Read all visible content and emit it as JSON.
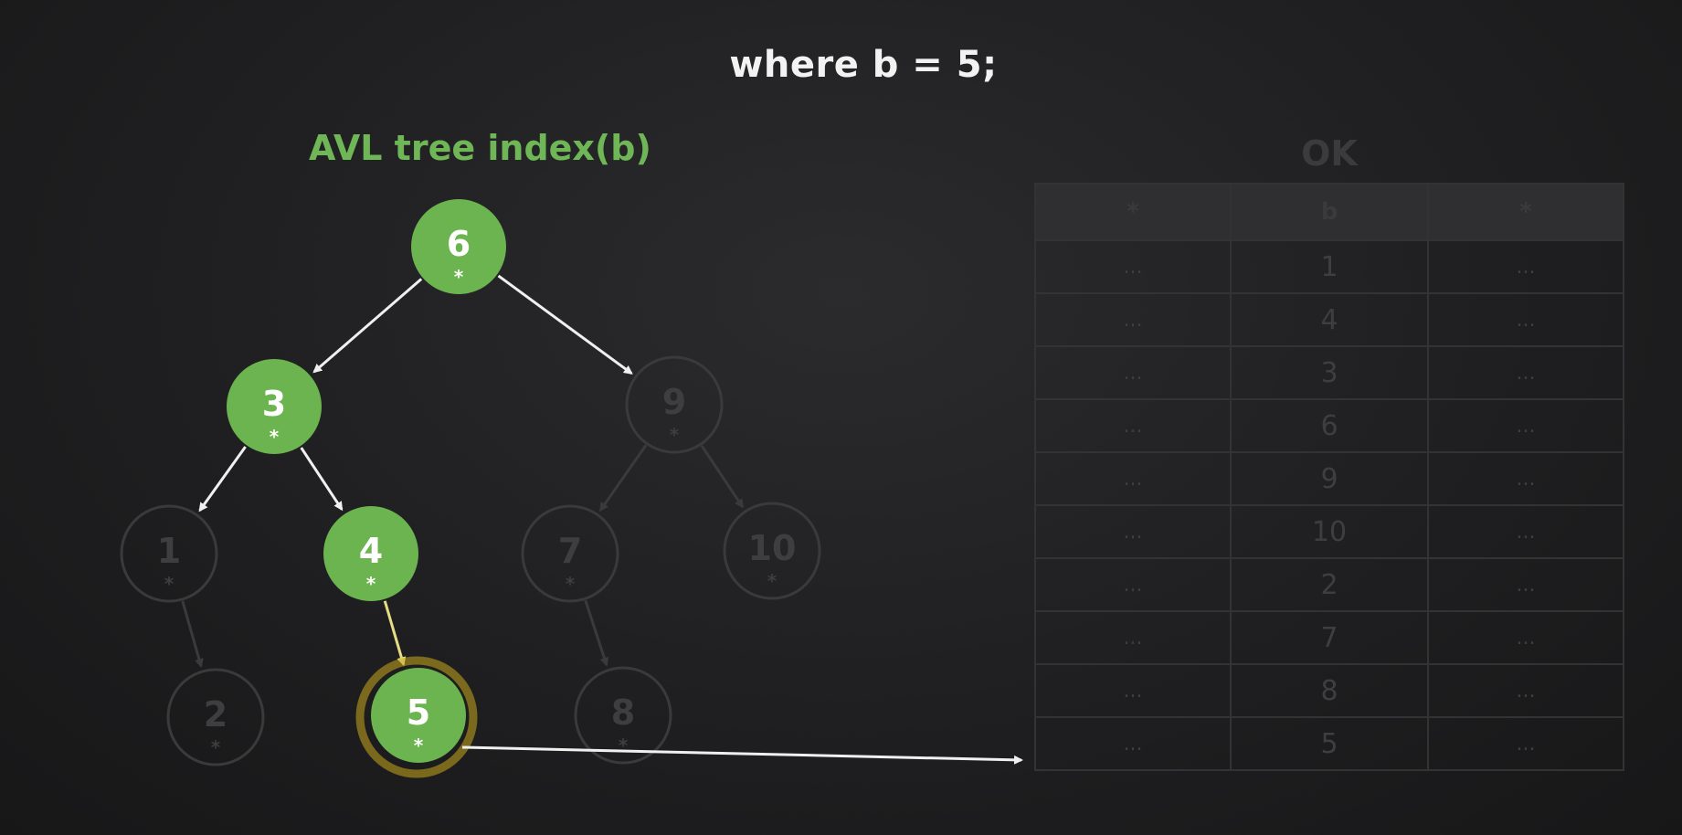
{
  "headline": "where b = 5;",
  "tree": {
    "title": "AVL tree index(b)",
    "node_marker": "*",
    "nodes": [
      {
        "id": "n6",
        "value": "6",
        "state": "visited"
      },
      {
        "id": "n3",
        "value": "3",
        "state": "visited"
      },
      {
        "id": "n9",
        "value": "9",
        "state": "faded"
      },
      {
        "id": "n1",
        "value": "1",
        "state": "faded"
      },
      {
        "id": "n4",
        "value": "4",
        "state": "visited"
      },
      {
        "id": "n7",
        "value": "7",
        "state": "faded"
      },
      {
        "id": "n10",
        "value": "10",
        "state": "faded"
      },
      {
        "id": "n2",
        "value": "2",
        "state": "faded"
      },
      {
        "id": "n5",
        "value": "5",
        "state": "found"
      },
      {
        "id": "n8",
        "value": "8",
        "state": "faded"
      }
    ],
    "edges": [
      {
        "from": "n6",
        "to": "n3",
        "state": "visited"
      },
      {
        "from": "n6",
        "to": "n9",
        "state": "visited"
      },
      {
        "from": "n3",
        "to": "n1",
        "state": "visited"
      },
      {
        "from": "n3",
        "to": "n4",
        "state": "visited"
      },
      {
        "from": "n9",
        "to": "n7",
        "state": "faded"
      },
      {
        "from": "n9",
        "to": "n10",
        "state": "faded"
      },
      {
        "from": "n1",
        "to": "n2",
        "state": "faded"
      },
      {
        "from": "n4",
        "to": "n5",
        "state": "highlight"
      },
      {
        "from": "n7",
        "to": "n8",
        "state": "faded"
      }
    ]
  },
  "table": {
    "title": "OK",
    "headers": [
      "*",
      "b",
      "*"
    ],
    "rows": [
      {
        "left": "...",
        "b": "1",
        "right": "..."
      },
      {
        "left": "...",
        "b": "4",
        "right": "..."
      },
      {
        "left": "...",
        "b": "3",
        "right": "..."
      },
      {
        "left": "...",
        "b": "6",
        "right": "..."
      },
      {
        "left": "...",
        "b": "9",
        "right": "..."
      },
      {
        "left": "...",
        "b": "10",
        "right": "..."
      },
      {
        "left": "...",
        "b": "2",
        "right": "..."
      },
      {
        "left": "...",
        "b": "7",
        "right": "..."
      },
      {
        "left": "...",
        "b": "8",
        "right": "..."
      },
      {
        "left": "...",
        "b": "5",
        "right": "..."
      }
    ]
  },
  "colors": {
    "visited_fill": "#6cb44f",
    "visited_text": "#ffffff",
    "faded_stroke": "#3a3a3c",
    "faded_text": "#3e3e40",
    "edge_visited": "#f0f0f0",
    "edge_faded": "#3a3a3c",
    "edge_highlight": "#e6dc86",
    "found_ring": "#c9a81e"
  }
}
